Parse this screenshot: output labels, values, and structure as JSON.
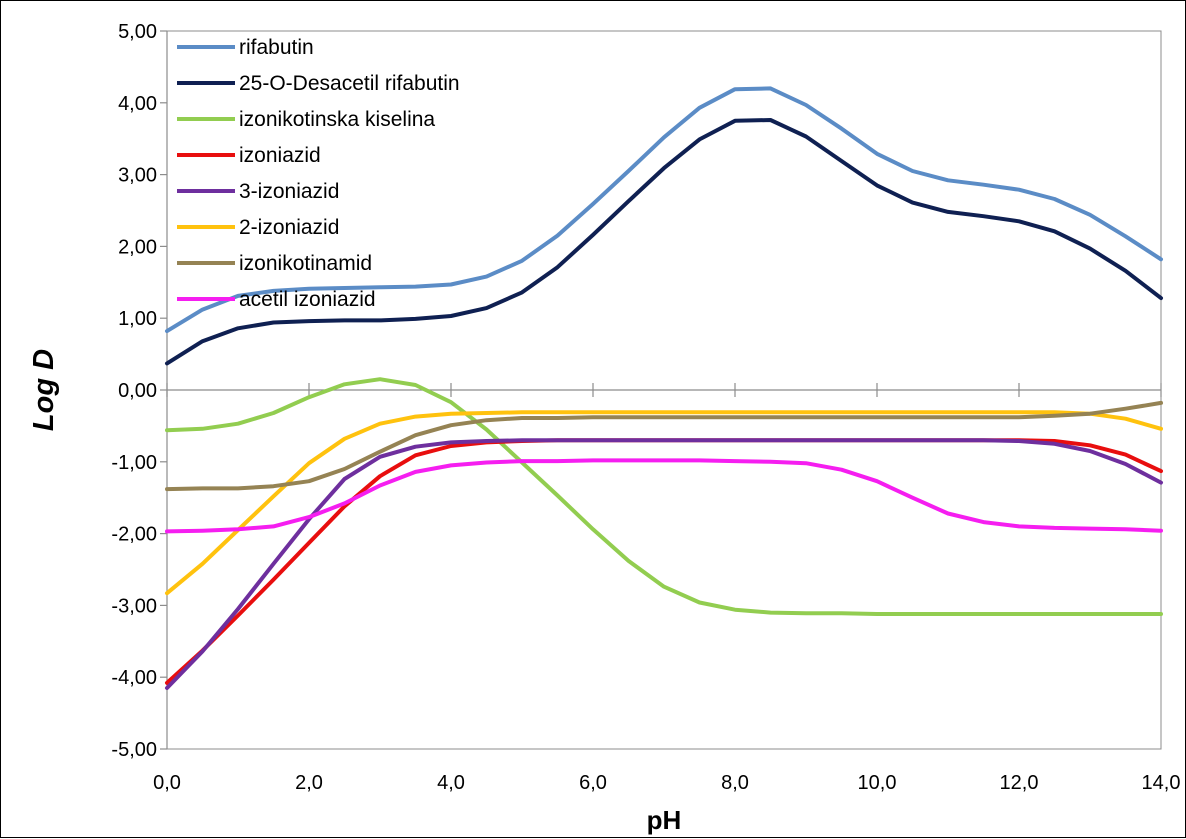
{
  "chart_data": {
    "type": "line",
    "title": "",
    "xlabel": "pH",
    "ylabel": "Log D",
    "xlim": [
      0,
      14
    ],
    "ylim": [
      -5,
      5
    ],
    "x_ticks": [
      "0,0",
      "2,0",
      "4,0",
      "6,0",
      "8,0",
      "10,0",
      "12,0",
      "14,0"
    ],
    "y_ticks": [
      "5,00",
      "4,00",
      "3,00",
      "2,00",
      "1,00",
      "0,00",
      "-1,00",
      "-2,00",
      "-3,00",
      "-4,00",
      "-5,00"
    ],
    "legend_position": "top-left",
    "grid": false,
    "x": [
      0,
      0.5,
      1,
      1.5,
      2,
      2.5,
      3,
      3.5,
      4,
      4.5,
      5,
      5.5,
      6,
      6.5,
      7,
      7.5,
      8,
      8.5,
      9,
      9.5,
      10,
      10.5,
      11,
      11.5,
      12,
      12.5,
      13,
      13.5,
      14
    ],
    "series": [
      {
        "name": "rifabutin",
        "color": "#5B8CC6",
        "values": [
          0.82,
          1.12,
          1.31,
          1.38,
          1.41,
          1.42,
          1.43,
          1.44,
          1.47,
          1.58,
          1.8,
          2.15,
          2.59,
          3.05,
          3.52,
          3.93,
          4.19,
          4.2,
          3.97,
          3.64,
          3.29,
          3.05,
          2.92,
          2.86,
          2.79,
          2.66,
          2.44,
          2.14,
          1.82
        ]
      },
      {
        "name": "25-O-Desacetil rifabutin",
        "color": "#0F2052",
        "values": [
          0.37,
          0.68,
          0.86,
          0.94,
          0.96,
          0.97,
          0.97,
          0.99,
          1.03,
          1.14,
          1.36,
          1.71,
          2.16,
          2.63,
          3.09,
          3.49,
          3.75,
          3.76,
          3.53,
          3.19,
          2.85,
          2.61,
          2.48,
          2.42,
          2.35,
          2.21,
          1.97,
          1.66,
          1.28
        ]
      },
      {
        "name": "izonikotinska kiselina",
        "color": "#92CD50",
        "values": [
          -0.56,
          -0.54,
          -0.47,
          -0.32,
          -0.1,
          0.08,
          0.15,
          0.07,
          -0.17,
          -0.55,
          -1.01,
          -1.47,
          -1.94,
          -2.38,
          -2.74,
          -2.96,
          -3.06,
          -3.1,
          -3.11,
          -3.11,
          -3.12,
          -3.12,
          -3.12,
          -3.12,
          -3.12,
          -3.12,
          -3.12,
          -3.12,
          -3.12
        ]
      },
      {
        "name": "izoniazid",
        "color": "#E80E0E",
        "values": [
          -4.08,
          -3.63,
          -3.14,
          -2.64,
          -2.13,
          -1.62,
          -1.2,
          -0.91,
          -0.78,
          -0.73,
          -0.71,
          -0.7,
          -0.7,
          -0.7,
          -0.7,
          -0.7,
          -0.7,
          -0.7,
          -0.7,
          -0.7,
          -0.7,
          -0.7,
          -0.7,
          -0.7,
          -0.7,
          -0.71,
          -0.77,
          -0.9,
          -1.13
        ]
      },
      {
        "name": "3-izoniazid",
        "color": "#6E2F9E",
        "values": [
          -4.15,
          -3.64,
          -3.05,
          -2.42,
          -1.8,
          -1.24,
          -0.93,
          -0.79,
          -0.73,
          -0.71,
          -0.7,
          -0.7,
          -0.7,
          -0.7,
          -0.7,
          -0.7,
          -0.7,
          -0.7,
          -0.7,
          -0.7,
          -0.7,
          -0.7,
          -0.7,
          -0.7,
          -0.71,
          -0.75,
          -0.85,
          -1.03,
          -1.29
        ]
      },
      {
        "name": "2-izoniazid",
        "color": "#FFC20E",
        "values": [
          -2.83,
          -2.42,
          -1.95,
          -1.48,
          -1.02,
          -0.68,
          -0.47,
          -0.37,
          -0.33,
          -0.32,
          -0.31,
          -0.31,
          -0.31,
          -0.31,
          -0.31,
          -0.31,
          -0.31,
          -0.31,
          -0.31,
          -0.31,
          -0.31,
          -0.31,
          -0.31,
          -0.31,
          -0.31,
          -0.31,
          -0.33,
          -0.4,
          -0.54
        ]
      },
      {
        "name": "izonikotinamid",
        "color": "#958354",
        "values": [
          -1.38,
          -1.37,
          -1.37,
          -1.34,
          -1.27,
          -1.1,
          -0.86,
          -0.63,
          -0.49,
          -0.42,
          -0.39,
          -0.39,
          -0.38,
          -0.38,
          -0.38,
          -0.38,
          -0.38,
          -0.38,
          -0.38,
          -0.38,
          -0.38,
          -0.38,
          -0.38,
          -0.38,
          -0.38,
          -0.36,
          -0.33,
          -0.26,
          -0.18
        ]
      },
      {
        "name": "acetil izoniazid",
        "color": "#F51EF0",
        "values": [
          -1.97,
          -1.96,
          -1.94,
          -1.9,
          -1.77,
          -1.58,
          -1.33,
          -1.14,
          -1.05,
          -1.01,
          -0.99,
          -0.99,
          -0.98,
          -0.98,
          -0.98,
          -0.98,
          -0.99,
          -1.0,
          -1.02,
          -1.11,
          -1.27,
          -1.5,
          -1.72,
          -1.84,
          -1.9,
          -1.92,
          -1.93,
          -1.94,
          -1.96
        ]
      }
    ]
  }
}
